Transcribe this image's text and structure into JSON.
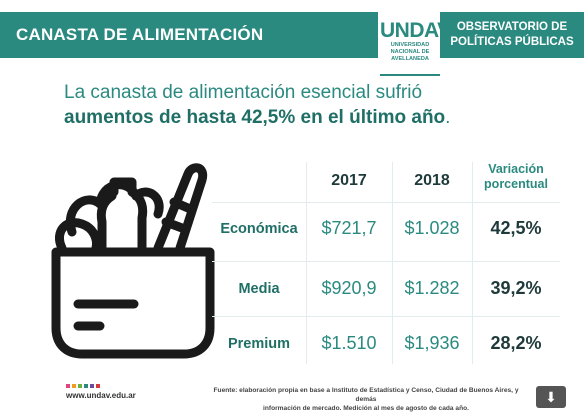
{
  "header": {
    "title": "CANASTA DE ALIMENTACIÓN",
    "logo_text": "UNDAV",
    "logo_subtitle": [
      "UNIVERSIDAD",
      "NACIONAL DE",
      "AVELLANEDA"
    ],
    "observatory_line1": "OBSERVATORIO DE",
    "observatory_line2": "POLÍTICAS PÚBLICAS"
  },
  "headline": {
    "line1": "La canasta de alimentación esencial sufrió",
    "line2_bold": "aumentos de hasta 42,5% en el último año",
    "line2_end": "."
  },
  "table": {
    "headers": [
      "2017",
      "2018"
    ],
    "variation_header_line1": "Variación",
    "variation_header_line2": "porcentual",
    "rows": [
      {
        "label": "Económica",
        "y2017": "$721,7",
        "y2018": "$1.028",
        "variation": "42,5%"
      },
      {
        "label": "Media",
        "y2017": "$920,9",
        "y2018": "$1.282",
        "variation": "39,2%"
      },
      {
        "label": "Premium",
        "y2017": "$1.510",
        "y2018": "$1,936",
        "variation": "28,2%"
      }
    ]
  },
  "footer": {
    "url": "www.undav.edu.ar",
    "source_line1": "Fuente: elaboración propia en base a Instituto de Estadística y Censo, Ciudad de Buenos Aires, y demás",
    "source_line2": "información de mercado. Medición al mes de agosto de cada año.",
    "download_icon": "download-arrow-icon"
  },
  "colors": {
    "teal": "#2b8a80",
    "dark_teal": "#1f6f66",
    "dots": [
      "#e0457b",
      "#f29c1f",
      "#6cb33f",
      "#2b8a80",
      "#6a4c9c",
      "#d33c3c"
    ]
  }
}
